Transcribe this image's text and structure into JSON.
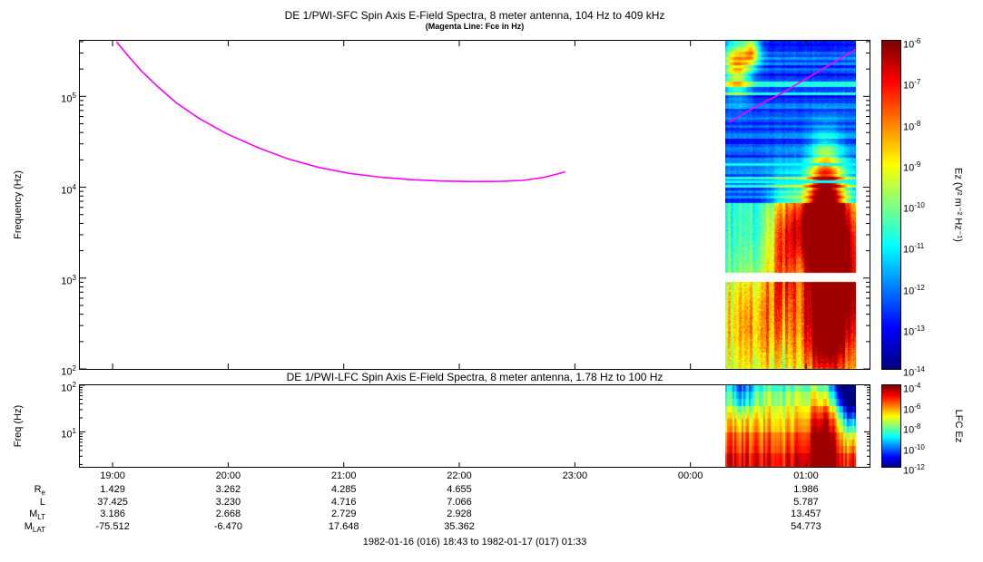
{
  "caption": "1982-01-16 (016) 18:43 to 1982-01-17 (017) 01:33",
  "ephemeris": {
    "rows": [
      {
        "label": "R",
        "subscript": "e",
        "values": [
          "1.429",
          "3.262",
          "4.285",
          "4.655",
          null,
          null,
          "1.986"
        ]
      },
      {
        "label": "L",
        "subscript": "",
        "values": [
          "37.425",
          "3.230",
          "4.716",
          "7.066",
          null,
          null,
          "5.787"
        ]
      },
      {
        "label": "M",
        "subscript": "LT",
        "values": [
          "3.186",
          "2.668",
          "2.729",
          "2.928",
          null,
          null,
          "13.457"
        ]
      },
      {
        "label": "M",
        "subscript": "LAT",
        "values": [
          "-75.512",
          "-6.470",
          "17.648",
          "35.362",
          null,
          null,
          "54.773"
        ]
      }
    ]
  },
  "chart_data": [
    {
      "type": "heatmap",
      "instrument": "DE 1/PWI-SFC",
      "title": "DE 1/PWI-SFC  Spin Axis E-Field Spectra, 8 meter antenna, 104 Hz to 409 kHz",
      "subtitle": "(Magenta Line: Fce in Hz)",
      "ylabel": "Frequency (Hz)",
      "x_range": [
        "18:43",
        "01:33"
      ],
      "x_total_minutes": 410,
      "x_ticks": [
        {
          "label": "19:00",
          "minute": 17
        },
        {
          "label": "20:00",
          "minute": 77
        },
        {
          "label": "21:00",
          "minute": 137
        },
        {
          "label": "22:00",
          "minute": 197
        },
        {
          "label": "23:00",
          "minute": 257
        },
        {
          "label": "00:00",
          "minute": 317
        },
        {
          "label": "01:00",
          "minute": 377
        }
      ],
      "yaxis": {
        "scale": "log",
        "min_hz": 100,
        "max_hz": 409000,
        "major_tick_exponents": [
          5,
          4,
          3,
          2
        ]
      },
      "colorbar": {
        "label": "Ez (V² m⁻² Hz⁻¹)",
        "tick_exponents": [
          -6,
          -7,
          -8,
          -9,
          -10,
          -11,
          -12,
          -13,
          -14
        ]
      },
      "fce_line": {
        "color": "#ff00ff",
        "units": [
          "minutes since 18:43",
          "Hz"
        ],
        "segments": [
          [
            [
              19,
              400000
            ],
            [
              25,
              280000
            ],
            [
              32,
              190000
            ],
            [
              40,
              130000
            ],
            [
              50,
              85000
            ],
            [
              62,
              57000
            ],
            [
              76,
              39000
            ],
            [
              92,
              27500
            ],
            [
              108,
              20500
            ],
            [
              124,
              16500
            ],
            [
              140,
              14200
            ],
            [
              156,
              12900
            ],
            [
              172,
              12100
            ],
            [
              188,
              11700
            ],
            [
              204,
              11550
            ],
            [
              218,
              11600
            ],
            [
              230,
              11900
            ],
            [
              240,
              12700
            ],
            [
              248,
              14000
            ],
            [
              252,
              14800
            ]
          ],
          [
            [
              337,
              52000
            ],
            [
              350,
              75000
            ],
            [
              365,
              110000
            ],
            [
              380,
              170000
            ],
            [
              392,
              240000
            ],
            [
              403,
              330000
            ]
          ]
        ]
      },
      "spectrogram": {
        "t_range_minutes": [
          335,
          403
        ],
        "features": {
          "blue_band_logf": [
            3.83,
            5.612
          ],
          "white_gap_logf": [
            2.96,
            3.06
          ],
          "cyan_lines_logf": [
            4.25,
            4.06
          ],
          "blobs": [
            [
              383,
              3.55,
              10,
              0.32,
              0.6
            ],
            [
              388,
              3.35,
              6,
              0.45,
              0.5
            ],
            [
              387,
              4.05,
              6,
              0.35,
              0.4
            ],
            [
              387,
              2.5,
              8,
              0.5,
              0.55
            ],
            [
              352,
              2.5,
              16,
              0.45,
              0.22
            ],
            [
              365,
              3.3,
              5,
              0.5,
              0.3
            ],
            [
              341,
              5.35,
              5,
              0.22,
              0.5
            ],
            [
              349,
              5.5,
              3,
              0.12,
              0.42
            ],
            [
              397,
              3.0,
              9,
              0.6,
              0.35
            ]
          ]
        }
      }
    },
    {
      "type": "heatmap",
      "instrument": "DE 1/PWI-LFC",
      "title": "DE 1/PWI-LFC  Spin Axis E-Field Spectra, 8 meter antenna, 1.78 Hz to 100 Hz",
      "ylabel": "Freq (Hz)",
      "yaxis": {
        "scale": "log",
        "min_hz": 1.78,
        "max_hz": 100,
        "major_tick_exponents": [
          2,
          1
        ]
      },
      "colorbar": {
        "label": "LFC Ez",
        "tick_exponents": [
          -4,
          -6,
          -8,
          -10,
          -12
        ]
      },
      "spectrogram": {
        "t_range_minutes": [
          335,
          403
        ],
        "features": {
          "channels": 12,
          "v_bottom": 0.92,
          "v_top": 0.44,
          "blobs": [
            [
              386,
              0.8,
              5,
              0.8,
              0.3
            ],
            [
              401,
              1.6,
              4,
              0.5,
              -0.5
            ],
            [
              344,
              1.85,
              5,
              0.3,
              -0.25
            ],
            [
              395,
              1.9,
              6,
              0.3,
              -0.3
            ]
          ]
        }
      }
    }
  ]
}
